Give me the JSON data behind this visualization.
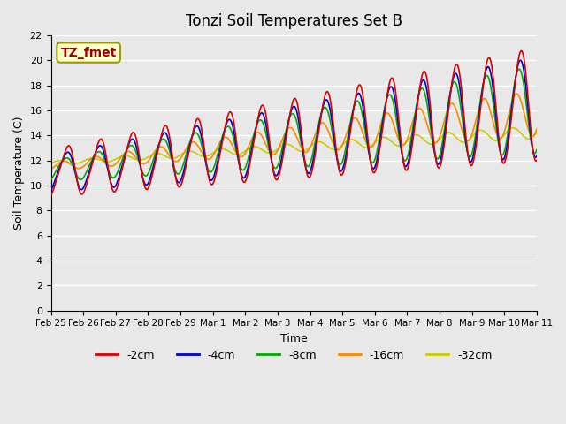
{
  "title": "Tonzi Soil Temperatures Set B",
  "xlabel": "Time",
  "ylabel": "Soil Temperature (C)",
  "annotation_text": "TZ_fmet",
  "annotation_color": "#990000",
  "annotation_bg": "#ffffcc",
  "annotation_edge": "#999900",
  "ylim": [
    0,
    22
  ],
  "yticks": [
    0,
    2,
    4,
    6,
    8,
    10,
    12,
    14,
    16,
    18,
    20,
    22
  ],
  "plot_bg": "#e8e8e8",
  "grid_color": "#ffffff",
  "colors": {
    "-2cm": "#dd0000",
    "-4cm": "#0000cc",
    "-8cm": "#00aa00",
    "-16cm": "#ff8800",
    "-32cm": "#cccc00"
  },
  "legend_order": [
    "-2cm",
    "-4cm",
    "-8cm",
    "-16cm",
    "-32cm"
  ],
  "xtick_labels": [
    "Feb 25",
    "Feb 26",
    "Feb 27",
    "Feb 28",
    "Feb 29",
    "Mar 1",
    "Mar 2",
    "Mar 3",
    "Mar 4",
    "Mar 5",
    "Mar 6",
    "Mar 7",
    "Mar 8",
    "Mar 9",
    "Mar 10",
    "Mar 11"
  ],
  "n_days": 15,
  "lw": 1.2
}
